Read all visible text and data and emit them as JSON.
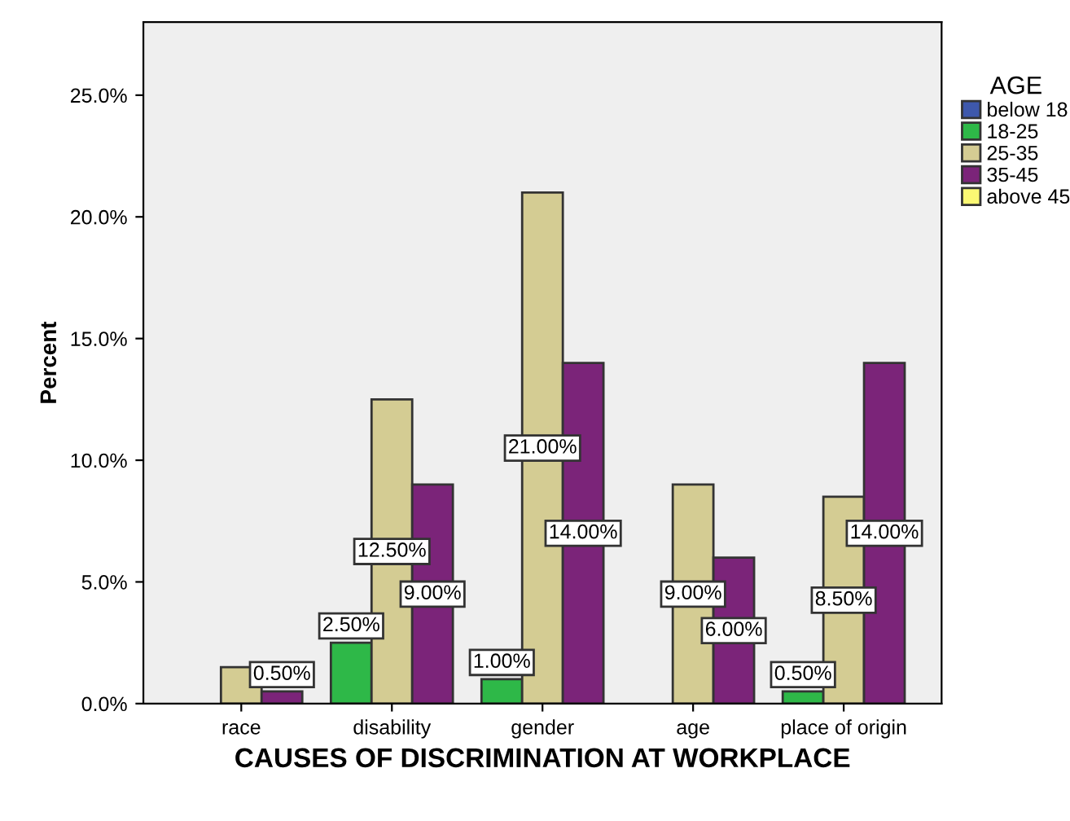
{
  "chart_data": {
    "type": "bar",
    "xlabel": "CAUSES OF DISCRIMINATION AT WORKPLACE",
    "ylabel": "Percent",
    "legend_title": "AGE",
    "legend": "right",
    "categories": [
      "race",
      "disability",
      "gender",
      "age",
      "place of origin"
    ],
    "series": [
      {
        "name": "below 18",
        "color": "#3e58ac",
        "values": [
          null,
          null,
          null,
          null,
          null
        ]
      },
      {
        "name": "18-25",
        "color": "#2eb848",
        "values": [
          null,
          2.5,
          1.0,
          null,
          0.5
        ],
        "value_labels": [
          null,
          "2.50%",
          "1.00%",
          null,
          "0.50%"
        ]
      },
      {
        "name": "25-35",
        "color": "#d4cc93",
        "values": [
          1.5,
          12.5,
          21.0,
          9.0,
          8.5
        ],
        "value_labels": [
          null,
          "12.50%",
          "21.00%",
          "9.00%",
          "8.50%"
        ]
      },
      {
        "name": "35-45",
        "color": "#7b2479",
        "values": [
          0.5,
          9.0,
          14.0,
          6.0,
          14.0
        ],
        "value_labels": [
          "0.50%",
          "9.00%",
          "14.00%",
          "6.00%",
          "14.00%"
        ]
      },
      {
        "name": "above 45",
        "color": "#fbf873",
        "values": [
          null,
          null,
          null,
          null,
          null
        ]
      }
    ],
    "ylim": [
      0,
      28
    ],
    "yticks": [
      {
        "value": 0,
        "label": "0.0%"
      },
      {
        "value": 5,
        "label": "5.0%"
      },
      {
        "value": 10,
        "label": "10.0%"
      },
      {
        "value": 15,
        "label": "15.0%"
      },
      {
        "value": 20,
        "label": "20.0%"
      },
      {
        "value": 25,
        "label": "25.0%"
      }
    ],
    "grid": false
  }
}
